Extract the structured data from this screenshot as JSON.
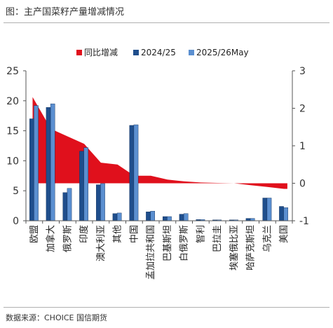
{
  "figure_title": "图：主产国菜籽产量增减情况",
  "source": "数据来源：CHOICE 国信期货",
  "colors": {
    "area": "#e0101c",
    "bar_2024": "#1f4e8c",
    "bar_2025": "#5b8fd0"
  },
  "chart_data": {
    "type": "bar",
    "title": "",
    "legend_position": "top",
    "grid": false,
    "categories": [
      "欧盟",
      "加拿大",
      "俄罗斯",
      "印度",
      "澳大利亚",
      "其他",
      "中国",
      "孟加拉共和国",
      "巴基斯坦",
      "白俄罗斯",
      "智利",
      "巴拉圭",
      "埃塞俄比亚",
      "哈萨克斯坦",
      "乌克兰",
      "美国"
    ],
    "series": [
      {
        "name": "同比增减",
        "kind": "area",
        "axis": "right",
        "values": [
          2.3,
          1.45,
          1.25,
          1.05,
          0.55,
          0.5,
          0.2,
          0.2,
          0.1,
          0.05,
          0.02,
          0.01,
          0.0,
          -0.05,
          -0.1,
          -0.15
        ]
      },
      {
        "name": "2024/25",
        "kind": "bar",
        "axis": "left",
        "values": [
          17.0,
          18.9,
          4.7,
          11.6,
          6.0,
          1.2,
          15.9,
          1.5,
          0.7,
          1.1,
          0.2,
          0.15,
          0.15,
          0.4,
          3.8,
          2.4
        ]
      },
      {
        "name": "2025/26May",
        "kind": "bar",
        "axis": "left",
        "values": [
          19.2,
          19.5,
          5.4,
          12.2,
          6.2,
          1.3,
          16.0,
          1.6,
          0.7,
          1.2,
          0.2,
          0.15,
          0.15,
          0.4,
          3.8,
          2.2
        ]
      }
    ],
    "y_left": {
      "min": 0,
      "max": 25,
      "ticks": [
        0,
        5,
        10,
        15,
        20,
        25
      ]
    },
    "y_right": {
      "min": -1,
      "max": 3,
      "ticks": [
        -1,
        0,
        1,
        2,
        3
      ]
    }
  }
}
